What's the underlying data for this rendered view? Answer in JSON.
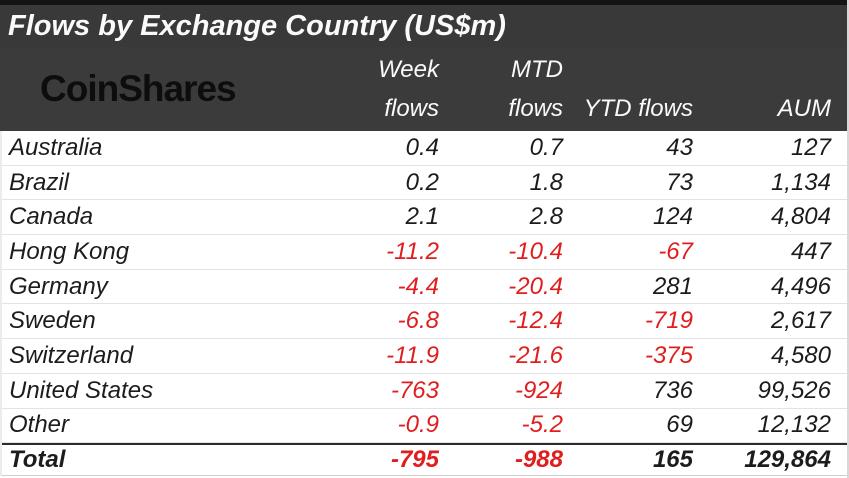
{
  "chart_data": {
    "type": "table",
    "title": "Flows by Exchange Country (US$m)",
    "brand": "CoinShares",
    "columns": [
      "",
      "Week flows",
      "MTD flows",
      "YTD flows",
      "AUM"
    ],
    "header": {
      "week": [
        "Week",
        "flows"
      ],
      "mtd": [
        "MTD",
        "flows"
      ],
      "ytd": "YTD flows",
      "aum": "AUM"
    },
    "rows": [
      {
        "country": "Australia",
        "week": "0.4",
        "mtd": "0.7",
        "ytd": "43",
        "aum": "127"
      },
      {
        "country": "Brazil",
        "week": "0.2",
        "mtd": "1.8",
        "ytd": "73",
        "aum": "1,134"
      },
      {
        "country": "Canada",
        "week": "2.1",
        "mtd": "2.8",
        "ytd": "124",
        "aum": "4,804"
      },
      {
        "country": "Hong Kong",
        "week": "-11.2",
        "mtd": "-10.4",
        "ytd": "-67",
        "aum": "447"
      },
      {
        "country": "Germany",
        "week": "-4.4",
        "mtd": "-20.4",
        "ytd": "281",
        "aum": "4,496"
      },
      {
        "country": "Sweden",
        "week": "-6.8",
        "mtd": "-12.4",
        "ytd": "-719",
        "aum": "2,617"
      },
      {
        "country": "Switzerland",
        "week": "-11.9",
        "mtd": "-21.6",
        "ytd": "-375",
        "aum": "4,580"
      },
      {
        "country": "United States",
        "week": "-763",
        "mtd": "-924",
        "ytd": "736",
        "aum": "99,526"
      },
      {
        "country": "Other",
        "week": "-0.9",
        "mtd": "-5.2",
        "ytd": "69",
        "aum": "12,132"
      }
    ],
    "total": {
      "country": "Total",
      "week": "-795",
      "mtd": "-988",
      "ytd": "165",
      "aum": "129,864"
    }
  },
  "colors": {
    "negative": "#e01e1e",
    "header_bg": "#3b3b3b",
    "text": "#1c1c1c",
    "header_text": "#fafafa"
  }
}
